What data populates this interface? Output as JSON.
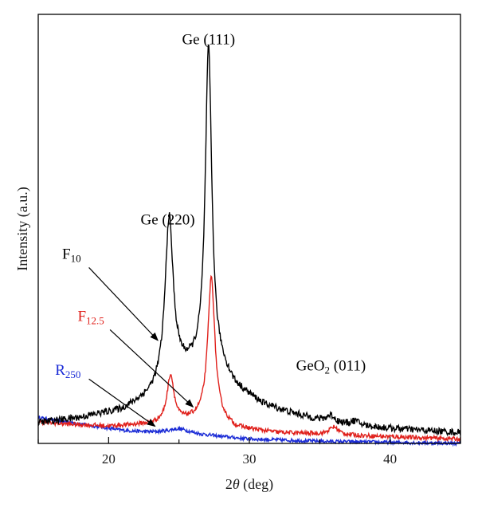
{
  "chart_data": {
    "type": "line",
    "xlabel": "2θ (deg)",
    "xlabel_parts": {
      "symbol": "θ",
      "prefix": "2",
      "suffix": " (deg)"
    },
    "ylabel": "Intensity (a.u.)",
    "xlim": [
      15,
      45
    ],
    "ylim": [
      0,
      1
    ],
    "xticks": [
      20,
      30,
      40
    ],
    "yticks_labeled": false,
    "grid": false,
    "legend": "none (curves labeled by arrows)",
    "series": [
      {
        "name": "F10",
        "label_main": "F",
        "label_sub": "10",
        "color": "#000000",
        "baseline": [
          [
            15,
            0.048
          ],
          [
            18,
            0.06
          ],
          [
            21,
            0.078
          ],
          [
            23,
            0.11
          ],
          [
            24,
            0.135
          ],
          [
            25,
            0.165
          ],
          [
            26,
            0.175
          ],
          [
            27,
            0.185
          ],
          [
            28,
            0.17
          ],
          [
            29,
            0.13
          ],
          [
            31,
            0.09
          ],
          [
            33,
            0.07
          ],
          [
            36,
            0.045
          ],
          [
            40,
            0.035
          ],
          [
            45,
            0.025
          ]
        ],
        "peaks": [
          {
            "center": 24.3,
            "height": 0.38,
            "width": 0.35
          },
          {
            "center": 27.1,
            "height": 0.735,
            "width": 0.28
          },
          {
            "center": 35.8,
            "height": 0.018,
            "width": 0.4
          },
          {
            "center": 37.5,
            "height": 0.01,
            "width": 0.4
          }
        ],
        "noise": 0.008
      },
      {
        "name": "F12.5",
        "label_main": "F",
        "label_sub": "12.5",
        "color": "#e0201b",
        "baseline": [
          [
            15,
            0.05
          ],
          [
            17,
            0.045
          ],
          [
            20,
            0.04
          ],
          [
            23,
            0.045
          ],
          [
            25,
            0.05
          ],
          [
            26,
            0.055
          ],
          [
            27,
            0.06
          ],
          [
            28,
            0.05
          ],
          [
            29,
            0.035
          ],
          [
            32,
            0.025
          ],
          [
            36,
            0.02
          ],
          [
            45,
            0.01
          ]
        ],
        "peaks": [
          {
            "center": 24.4,
            "height": 0.11,
            "width": 0.3
          },
          {
            "center": 27.3,
            "height": 0.33,
            "width": 0.3
          },
          {
            "center": 36.0,
            "height": 0.018,
            "width": 0.4
          }
        ],
        "noise": 0.005
      },
      {
        "name": "R250",
        "label_main": "R",
        "label_sub": "250",
        "color": "#1a2bd6",
        "baseline": [
          [
            15,
            0.06
          ],
          [
            18,
            0.045
          ],
          [
            21,
            0.03
          ],
          [
            23,
            0.025
          ],
          [
            25,
            0.022
          ],
          [
            27,
            0.018
          ],
          [
            30,
            0.01
          ],
          [
            35,
            0.005
          ],
          [
            45,
            0.0
          ]
        ],
        "peaks": [
          {
            "center": 25.0,
            "height": 0.012,
            "width": 1.0
          }
        ],
        "noise": 0.004
      }
    ],
    "annotations": [
      {
        "kind": "peak",
        "main": "Ge (111)",
        "sub": "",
        "tail": "",
        "at": [
          27.1,
          0.93
        ]
      },
      {
        "kind": "peak",
        "main": "Ge (220)",
        "sub": "",
        "tail": "",
        "at": [
          24.2,
          0.51
        ]
      },
      {
        "kind": "peak",
        "main": "GeO",
        "sub": "2",
        "tail": " (011)",
        "at": [
          35.8,
          0.17
        ]
      },
      {
        "kind": "series",
        "series": "F10",
        "main": "F",
        "sub": "10",
        "tail": "",
        "at": [
          16.7,
          0.43
        ],
        "arrow_from": [
          18.6,
          0.41
        ],
        "arrow_to": [
          23.5,
          0.24
        ]
      },
      {
        "kind": "series",
        "series": "F12.5",
        "main": "F",
        "sub": "12.5",
        "tail": "",
        "at": [
          17.8,
          0.285
        ],
        "arrow_from": [
          20.1,
          0.265
        ],
        "arrow_to": [
          26.0,
          0.085
        ]
      },
      {
        "kind": "series",
        "series": "R250",
        "main": "R",
        "sub": "250",
        "tail": "",
        "at": [
          16.2,
          0.16
        ],
        "arrow_from": [
          18.6,
          0.15
        ],
        "arrow_to": [
          23.3,
          0.04
        ]
      }
    ]
  }
}
